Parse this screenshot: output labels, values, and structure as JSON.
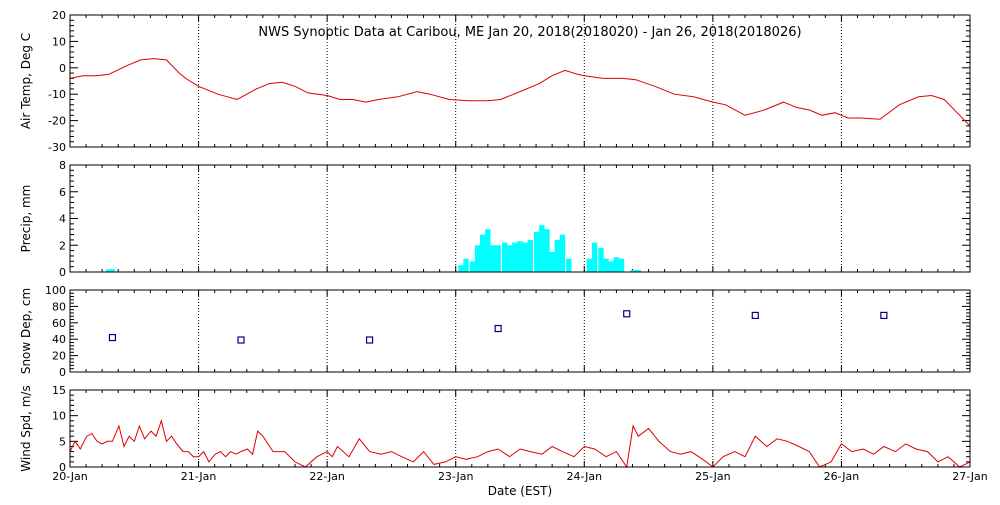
{
  "title": "NWS Synoptic Data at Caribou, ME   Jan 20, 2018(2018020) - Jan 26, 2018(2018026)",
  "xlabel": "Date (EST)",
  "x_ticks": [
    "20-Jan",
    "21-Jan",
    "22-Jan",
    "23-Jan",
    "24-Jan",
    "25-Jan",
    "26-Jan",
    "27-Jan"
  ],
  "colors": {
    "temp": "#dd0000",
    "precip": "#00ffff",
    "snow": "#000088",
    "wind": "#dd0000",
    "grid": "#000000"
  },
  "chart_data": [
    {
      "type": "line",
      "ylabel": "Air Temp, Deg C",
      "ylim": [
        -30,
        20
      ],
      "yticks": [
        -30,
        -20,
        -10,
        0,
        10,
        20
      ],
      "xlim": [
        0,
        7
      ],
      "x_unit": "days since 20-Jan",
      "grid": "vertical dotted at day boundaries",
      "series": [
        {
          "x": [
            0,
            0.1,
            0.2,
            0.3,
            0.45,
            0.55,
            0.65,
            0.75,
            0.85,
            0.9,
            1.0,
            1.15,
            1.3,
            1.45,
            1.55,
            1.65,
            1.75,
            1.85,
            2.0,
            2.1,
            2.2,
            2.3,
            2.4,
            2.55,
            2.7,
            2.8,
            2.95,
            3.1,
            3.25,
            3.35,
            3.5,
            3.65,
            3.75,
            3.85,
            3.95,
            4.0,
            4.15,
            4.3,
            4.4,
            4.55,
            4.7,
            4.85,
            5.0,
            5.1,
            5.25,
            5.4,
            5.55,
            5.65,
            5.75,
            5.85,
            5.95,
            6.05,
            6.15,
            6.3,
            6.45,
            6.6,
            6.7,
            6.8,
            6.9,
            7.0
          ],
          "values": [
            -4,
            -3,
            -3,
            -2.5,
            1,
            3,
            3.5,
            3,
            -2,
            -4,
            -7,
            -10,
            -12,
            -8,
            -6,
            -5.5,
            -7,
            -9.5,
            -10.5,
            -12,
            -12,
            -13,
            -12,
            -11,
            -9,
            -10,
            -12,
            -12.5,
            -12.5,
            -12,
            -9,
            -6,
            -3,
            -1,
            -2.5,
            -3,
            -4,
            -4,
            -4.5,
            -7,
            -10,
            -11,
            -13,
            -14,
            -18,
            -16,
            -13,
            -15,
            -16,
            -18,
            -17,
            -19,
            -19,
            -19.5,
            -14,
            -11,
            -10.5,
            -12,
            -17,
            -22
          ]
        }
      ]
    },
    {
      "type": "bar",
      "ylabel": "Precip, mm",
      "ylim": [
        0,
        8
      ],
      "yticks": [
        0,
        2,
        4,
        6,
        8
      ],
      "xlim": [
        0,
        7
      ],
      "bar_width_days": 0.0417,
      "series": [
        {
          "x": [
            0.3,
            0.33,
            3.04,
            3.08,
            3.13,
            3.17,
            3.21,
            3.25,
            3.29,
            3.33,
            3.38,
            3.42,
            3.46,
            3.5,
            3.54,
            3.58,
            3.63,
            3.67,
            3.71,
            3.75,
            3.79,
            3.83,
            3.88,
            4.04,
            4.08,
            4.13,
            4.17,
            4.21,
            4.25,
            4.29,
            4.38,
            4.42
          ],
          "values": [
            0.2,
            0.2,
            0.5,
            1.0,
            0.8,
            2.0,
            2.8,
            3.2,
            2.0,
            2.0,
            2.2,
            2.0,
            2.2,
            2.3,
            2.2,
            2.4,
            3.0,
            3.5,
            3.2,
            1.5,
            2.4,
            2.8,
            1.0,
            1.0,
            2.2,
            1.8,
            1.0,
            0.8,
            1.1,
            1.0,
            0.15,
            0.15
          ]
        }
      ]
    },
    {
      "type": "scatter",
      "ylabel": "Snow Dep, cm",
      "ylim": [
        0,
        100
      ],
      "yticks": [
        0,
        20,
        40,
        60,
        80,
        100
      ],
      "xlim": [
        0,
        7
      ],
      "series": [
        {
          "x": [
            0.33,
            1.33,
            2.33,
            3.33,
            4.33,
            5.33,
            6.33
          ],
          "values": [
            42,
            39,
            39,
            53,
            71,
            69,
            69
          ]
        }
      ]
    },
    {
      "type": "line",
      "ylabel": "Wind Spd, m/s",
      "ylim": [
        0,
        15
      ],
      "yticks": [
        0,
        5,
        10,
        15
      ],
      "xlim": [
        0,
        7
      ],
      "series": [
        {
          "x": [
            0,
            0.04,
            0.08,
            0.13,
            0.17,
            0.21,
            0.25,
            0.29,
            0.33,
            0.38,
            0.42,
            0.46,
            0.5,
            0.54,
            0.58,
            0.63,
            0.67,
            0.71,
            0.75,
            0.79,
            0.83,
            0.88,
            0.92,
            0.96,
            1.0,
            1.04,
            1.08,
            1.13,
            1.17,
            1.21,
            1.25,
            1.29,
            1.33,
            1.38,
            1.42,
            1.46,
            1.5,
            1.58,
            1.67,
            1.75,
            1.83,
            1.92,
            2.0,
            2.04,
            2.08,
            2.17,
            2.25,
            2.33,
            2.42,
            2.5,
            2.58,
            2.67,
            2.75,
            2.83,
            2.92,
            3.0,
            3.08,
            3.17,
            3.25,
            3.33,
            3.42,
            3.5,
            3.58,
            3.67,
            3.75,
            3.83,
            3.92,
            4.0,
            4.08,
            4.17,
            4.25,
            4.33,
            4.38,
            4.42,
            4.5,
            4.58,
            4.67,
            4.75,
            4.83,
            4.92,
            5.0,
            5.08,
            5.17,
            5.25,
            5.33,
            5.42,
            5.5,
            5.58,
            5.67,
            5.75,
            5.83,
            5.92,
            6.0,
            6.08,
            6.17,
            6.25,
            6.33,
            6.42,
            6.5,
            6.58,
            6.67,
            6.75,
            6.83,
            6.92,
            6.96,
            7.0
          ],
          "values": [
            3,
            5,
            3.5,
            6,
            6.5,
            5,
            4.5,
            5,
            5,
            8,
            4,
            6,
            5,
            8,
            5.5,
            7,
            6,
            9,
            5,
            6,
            4.5,
            3,
            3,
            2,
            2,
            3,
            1,
            2.5,
            3,
            2,
            3,
            2.5,
            3,
            3.5,
            2.5,
            7,
            6,
            3,
            3,
            1,
            0,
            2,
            3,
            2,
            4,
            2,
            5.5,
            3,
            2.5,
            3,
            2,
            1,
            3,
            0.5,
            1,
            2,
            1.5,
            2,
            3,
            3.5,
            2,
            3.5,
            3,
            2.5,
            4,
            3,
            2,
            4,
            3.5,
            2,
            3,
            0,
            8,
            6,
            7.5,
            5,
            3,
            2.5,
            3,
            1.5,
            0,
            2,
            3,
            2,
            6,
            4,
            5.5,
            5,
            4,
            3,
            0,
            1,
            4.5,
            3,
            3.5,
            2.5,
            4,
            3,
            4.5,
            3.5,
            3,
            1,
            2,
            0,
            0.5,
            1
          ]
        }
      ]
    }
  ]
}
